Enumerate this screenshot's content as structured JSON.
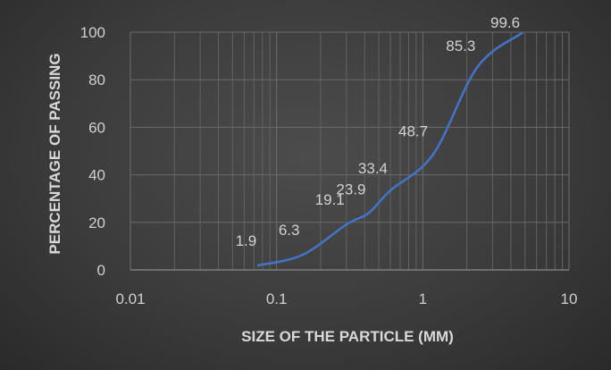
{
  "chart_data": {
    "type": "line",
    "xlabel": "SIZE OF THE PARTICLE (MM)",
    "ylabel": "PERCENTAGE OF PASSING",
    "x_scale": "log",
    "xlim": [
      0.01,
      10
    ],
    "ylim": [
      0,
      100
    ],
    "x_ticks": [
      "0.01",
      "0.1",
      "1",
      "10"
    ],
    "y_ticks": [
      "0",
      "20",
      "40",
      "60",
      "80",
      "100"
    ],
    "grid": true,
    "legend": "none",
    "series": [
      {
        "color": "#4472c4",
        "x": [
          0.075,
          0.15,
          0.3,
          0.425,
          0.6,
          1.18,
          2.36,
          4.75
        ],
        "y": [
          1.9,
          6.3,
          19.1,
          23.9,
          33.4,
          48.7,
          85.3,
          99.6
        ],
        "labels": [
          "1.9",
          "6.3",
          "19.1",
          "23.9",
          "33.4",
          "48.7",
          "85.3",
          "99.6"
        ]
      }
    ]
  }
}
